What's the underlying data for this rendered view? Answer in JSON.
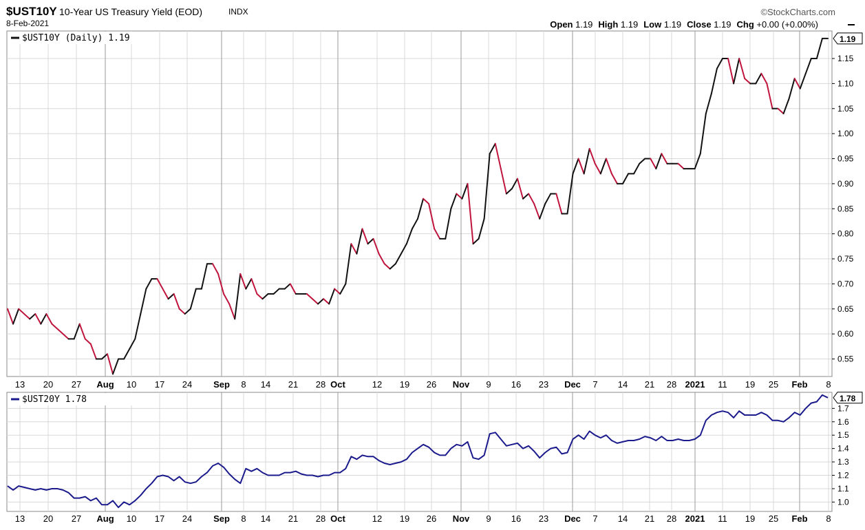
{
  "header": {
    "ticker": "$UST10Y",
    "description": "10-Year US Treasury Yield (EOD)",
    "exchange": "INDX",
    "date": "8-Feb-2021",
    "brand": "©StockCharts.com",
    "ohlc": [
      {
        "label": "Open",
        "value": "1.19"
      },
      {
        "label": "High",
        "value": "1.19"
      },
      {
        "label": "Low",
        "value": "1.19"
      },
      {
        "label": "Close",
        "value": "1.19"
      },
      {
        "label": "Chg",
        "value": "+0.00 (+0.00%)"
      }
    ]
  },
  "colors": {
    "up": "#111111",
    "down": "#c0143c",
    "series2": "#1a1a8c",
    "grid": "#d8d8d8",
    "vgrid_major": "#9a9a9a"
  },
  "x_axis": {
    "ticks": [
      {
        "label": "13",
        "bold": false
      },
      {
        "label": "20",
        "bold": false
      },
      {
        "label": "27",
        "bold": false
      },
      {
        "label": "Aug",
        "bold": true
      },
      {
        "label": "10",
        "bold": false
      },
      {
        "label": "17",
        "bold": false
      },
      {
        "label": "24",
        "bold": false
      },
      {
        "label": "Sep",
        "bold": true
      },
      {
        "label": "8",
        "bold": false
      },
      {
        "label": "14",
        "bold": false
      },
      {
        "label": "21",
        "bold": false
      },
      {
        "label": "28",
        "bold": false
      },
      {
        "label": "Oct",
        "bold": true
      },
      {
        "label": "12",
        "bold": false
      },
      {
        "label": "19",
        "bold": false
      },
      {
        "label": "26",
        "bold": false
      },
      {
        "label": "Nov",
        "bold": true
      },
      {
        "label": "9",
        "bold": false
      },
      {
        "label": "16",
        "bold": false
      },
      {
        "label": "23",
        "bold": false
      },
      {
        "label": "Dec",
        "bold": true
      },
      {
        "label": "7",
        "bold": false
      },
      {
        "label": "14",
        "bold": false
      },
      {
        "label": "21",
        "bold": false
      },
      {
        "label": "28",
        "bold": false
      },
      {
        "label": "2021",
        "bold": true
      },
      {
        "label": "11",
        "bold": false
      },
      {
        "label": "19",
        "bold": false
      },
      {
        "label": "25",
        "bold": false
      },
      {
        "label": "Feb",
        "bold": true
      },
      {
        "label": "8",
        "bold": false
      }
    ]
  },
  "chart_data": [
    {
      "type": "line",
      "title": "$UST10Y (Daily) 1.19",
      "last_value": "1.19",
      "ylim": [
        0.515,
        1.205
      ],
      "yticks": [
        "0.55",
        "0.60",
        "0.65",
        "0.70",
        "0.75",
        "0.80",
        "0.85",
        "0.90",
        "0.95",
        "1.00",
        "1.05",
        "1.10",
        "1.15"
      ],
      "values": [
        0.65,
        0.62,
        0.65,
        0.64,
        0.63,
        0.64,
        0.62,
        0.64,
        0.62,
        0.61,
        0.6,
        0.59,
        0.59,
        0.62,
        0.59,
        0.58,
        0.55,
        0.55,
        0.56,
        0.52,
        0.55,
        0.55,
        0.57,
        0.59,
        0.64,
        0.69,
        0.71,
        0.71,
        0.69,
        0.67,
        0.68,
        0.65,
        0.64,
        0.65,
        0.69,
        0.69,
        0.74,
        0.74,
        0.72,
        0.68,
        0.66,
        0.63,
        0.72,
        0.69,
        0.71,
        0.68,
        0.67,
        0.68,
        0.68,
        0.69,
        0.69,
        0.7,
        0.68,
        0.68,
        0.68,
        0.67,
        0.66,
        0.67,
        0.66,
        0.69,
        0.68,
        0.7,
        0.78,
        0.76,
        0.81,
        0.78,
        0.79,
        0.76,
        0.74,
        0.73,
        0.74,
        0.76,
        0.78,
        0.81,
        0.83,
        0.87,
        0.86,
        0.81,
        0.79,
        0.79,
        0.85,
        0.88,
        0.87,
        0.9,
        0.78,
        0.79,
        0.83,
        0.96,
        0.98,
        0.93,
        0.88,
        0.89,
        0.91,
        0.87,
        0.88,
        0.86,
        0.83,
        0.86,
        0.88,
        0.88,
        0.84,
        0.84,
        0.92,
        0.95,
        0.92,
        0.97,
        0.94,
        0.92,
        0.95,
        0.92,
        0.9,
        0.9,
        0.92,
        0.92,
        0.94,
        0.95,
        0.95,
        0.93,
        0.96,
        0.94,
        0.94,
        0.94,
        0.93,
        0.93,
        0.93,
        0.96,
        1.04,
        1.08,
        1.13,
        1.15,
        1.15,
        1.1,
        1.15,
        1.11,
        1.1,
        1.1,
        1.12,
        1.1,
        1.05,
        1.05,
        1.04,
        1.07,
        1.11,
        1.09,
        1.12,
        1.15,
        1.15,
        1.19,
        1.19
      ]
    },
    {
      "type": "line",
      "title": "$UST20Y 1.78",
      "last_value": "1.78",
      "ylim": [
        0.93,
        1.82
      ],
      "yticks": [
        "1.0",
        "1.1",
        "1.2",
        "1.3",
        "1.4",
        "1.5",
        "1.6",
        "1.7"
      ],
      "values": [
        1.12,
        1.09,
        1.12,
        1.11,
        1.1,
        1.09,
        1.1,
        1.09,
        1.1,
        1.1,
        1.09,
        1.07,
        1.03,
        1.03,
        1.04,
        1.01,
        1.03,
        0.98,
        0.98,
        1.01,
        0.96,
        1.0,
        0.98,
        1.01,
        1.05,
        1.1,
        1.14,
        1.19,
        1.2,
        1.19,
        1.16,
        1.19,
        1.15,
        1.14,
        1.15,
        1.19,
        1.22,
        1.27,
        1.29,
        1.26,
        1.21,
        1.17,
        1.14,
        1.25,
        1.23,
        1.25,
        1.22,
        1.2,
        1.2,
        1.2,
        1.22,
        1.22,
        1.23,
        1.21,
        1.2,
        1.2,
        1.19,
        1.2,
        1.2,
        1.22,
        1.22,
        1.25,
        1.34,
        1.32,
        1.35,
        1.34,
        1.34,
        1.31,
        1.29,
        1.28,
        1.29,
        1.3,
        1.32,
        1.37,
        1.4,
        1.43,
        1.41,
        1.37,
        1.35,
        1.35,
        1.4,
        1.43,
        1.42,
        1.45,
        1.33,
        1.32,
        1.35,
        1.51,
        1.52,
        1.47,
        1.42,
        1.43,
        1.44,
        1.4,
        1.42,
        1.38,
        1.33,
        1.37,
        1.4,
        1.41,
        1.36,
        1.37,
        1.47,
        1.5,
        1.47,
        1.53,
        1.5,
        1.48,
        1.5,
        1.46,
        1.44,
        1.45,
        1.46,
        1.46,
        1.47,
        1.49,
        1.48,
        1.46,
        1.49,
        1.46,
        1.46,
        1.47,
        1.46,
        1.46,
        1.47,
        1.5,
        1.61,
        1.65,
        1.67,
        1.68,
        1.67,
        1.63,
        1.68,
        1.65,
        1.65,
        1.65,
        1.67,
        1.65,
        1.61,
        1.61,
        1.6,
        1.63,
        1.67,
        1.65,
        1.7,
        1.74,
        1.75,
        1.8,
        1.78
      ]
    }
  ]
}
